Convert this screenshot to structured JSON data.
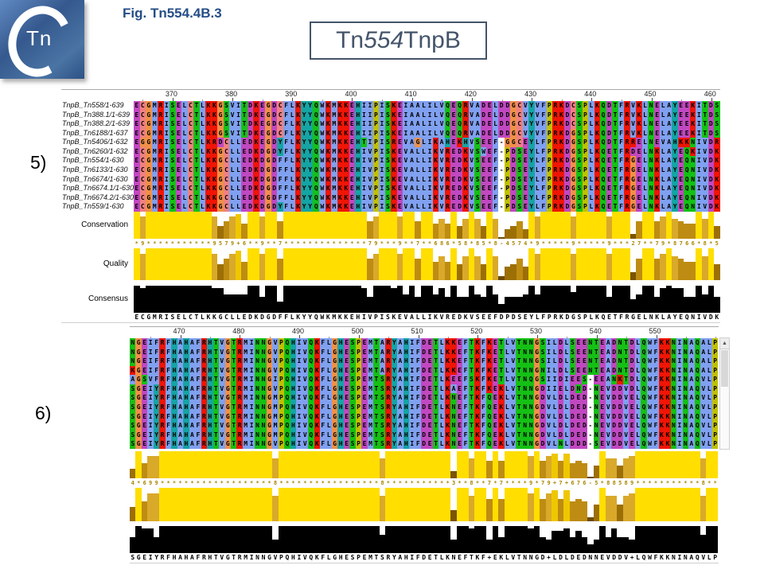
{
  "header": {
    "figure_caption": "Fig. Tn554.4B.3",
    "title": {
      "prefix": "Tn",
      "italic_number": "554",
      "suffix": " TnpB"
    },
    "logo": {
      "ring_letter": "C",
      "text": "Tn"
    }
  },
  "icons": {
    "scroll_up": "▲"
  },
  "color_scheme": {
    "name": "clustal",
    "map": {
      "A": "#80A0F0",
      "I": "#80A0F0",
      "L": "#80A0F0",
      "M": "#80A0F0",
      "F": "#80A0F0",
      "W": "#80A0F0",
      "V": "#80A0F0",
      "K": "#F01505",
      "R": "#F01505",
      "E": "#C048C0",
      "D": "#C048C0",
      "N": "#15C015",
      "Q": "#15C015",
      "S": "#15C015",
      "T": "#15C015",
      "C": "#F08080",
      "G": "#F09048",
      "P": "#C0C000",
      "H": "#15A4A4",
      "Y": "#15A4A4",
      "-": "#FFFFFF"
    }
  },
  "tracks": {
    "labels": {
      "conservation": "Conservation",
      "quality": "Quality",
      "consensus": "Consensus"
    },
    "conservation_palette": {
      "p11": "#FFDE00",
      "p10": "#EFC700",
      "p8": "#D9A92A",
      "p6": "#BE8C12",
      "p4": "#9C6F06",
      "p1": "#7A5403",
      "p0": "#6B4A02"
    },
    "digit_color": "#A98600",
    "consensus_bar_color": "#000000"
  },
  "panels": [
    {
      "label": "5)",
      "ruler_start": 364,
      "max_label": 460,
      "show_names": true,
      "show_track_labels": true,
      "names": [
        "TnpB_Tn558/1-639",
        "TnpB_Tn388.1/1-639",
        "TnpB_Tn388.2/1-639",
        "TnpB_Tn6188/1-637",
        "TnpB_Tn5406/1-632",
        "TnpB_Tn6260/1-632",
        "TnpB_Tn554/1-630",
        "TnpB_Tn6133/1-630",
        "TnpB_Tn6674/1-630",
        "TnpB_Tn6674.1/1-630",
        "TnpB_Tn6674.2/1-630",
        "TnpB_Tn559/1-630"
      ],
      "sequences": [
        "ECGMRISELCTLKKGSVITDKEGDCFLKYYQWKMKKEHIIPISKEIAALILVQEQRVADELDDGCVYVFPRKDCSPLKQDTFRVKLNELAYEEKITDS",
        "ECGMRISELCTLKKGSVITDKEGDCFLKYYQWKMKKEHIIPISKEIAALILVQEQRVADELDDGCVYVFPRKDCSPLKQDTFRVKLNELAYEEKITDS",
        "ECGMRISELCTLKKGSVITDKEGDCFLKYYQWKMKKEHIIPISKEIAALILVQEQRVADELDDGCVYVFPRKDCSPLKQDTFRVKLNELAYEEKITDS",
        "ECGMRISELCTLKKGSVITDKEGDCFLKYYQWKMKKEHIIPISKEIAALILVQEQRVADELDDGCVYVFPRKDGSPLKQDTFRVKLNELAYEEKITDS",
        "EGGMRISELCTLKRDCLLEDKEGDYFLKYYQWKMKKEHTIPISREVAGLIKAHEKHVSEEF-GGCEYLFPRKDGSPLKQDTFRRELNEVAHKKNIVDR",
        "ECGMRISELCTLKKGCLLEDKDGDYFLKYYQWKMKKEHIVPISKEVALLIKVREDKVSWEF-PDSEYLFPRKDGSPLKQETFRDELNKLAYEQKIVDK",
        "ECGMRISELCTLKKGCLLEDKDGDFFLKYYQWKMKKEHIVPISKEVALLIKVREDKVSEEF-PDSEYLFPRKDGSPLKQETFRGELNKLAYEQNIVDK",
        "ECGMRISELCTLKKGCLLEDKDGDFFLKYYQWKMKKEHIVPISKEVALLIKVREDKVSEEF-PDSEYLFPRKDGSPLKQETFRGELNKLAYEQNIVDK",
        "ECGMRISELCTLKKGCLLEDKDGDFFLKYYQWKMKKEHIVPISKEVALLIKVREDKVSEEF-PDSEYLFPRKDGSPLKQETFRGELNKLAYEQNIVDK",
        "ECGMRISELCTLKKGCLLEDKDGDFFLKYYQWKMKKEHIVPISKEVALLIKVREDKVSEEF-PDSEYLFPRKDGSPLKQETFRGELNKLAYEQNIVDK",
        "ECGMRISELCTLKKGCLLEDKDGDFFLKYYQWKMKKEHIVPISKEVALLIKVREDKVSEEF-PDSEYLFPRKDGSPLKQETFRGELNKLAYEQNIVDK",
        "ECGMRISELCTLKKGCLLEDKDGDYFLKYYQWKMKKEHIVPISKEVALLIKVREDKVSEEF-PDSEYLFPRKDGSPLKQETFRGELNKLAYEQNIVDK"
      ],
      "conservation": "*9***********9579+6**9**7**************79***9**7**686*58*85*8-4574*9*****9*****9***27**79*8766*8*5",
      "consensus_sequence": "ECGMRISELCTLKKGCLLEDKDGDFFLKYYQWKMKKEHIVPISKEVALLIKVREDKVSEEFDPDSEYLFPRKDGSPLKQETFRGELNKLAYEQNIVDK",
      "scrollbar": false
    },
    {
      "label": "6)",
      "ruler_start": 462,
      "max_label": 550,
      "show_names": false,
      "show_track_labels": false,
      "names": [],
      "sequences": [
        "NGEIFRFHAHAFRHTVGTRMINNGVPQHIVQKFLGHESPEMTARYAHIFDETLKKEFTKFKETLVTNNGSILDLSEENTEADNTDLQWFKKNINAQALP",
        "NGEIFRFHAHAFRHTVGTRMINNGVPQHIVQKFLGHESPEMTARYAHIFDETLKKEFTKFKETLVTNNGSILDLSEENTEADNTDLQWFKKNINAQALP",
        "NGEIFRFHAHAFRHTVGTRMINNGVPQHIVQKFLGHESPEMTARYAHIFDETLKKEFTKFKETLVTNNGSILDLSEENTEADNTDLQWFKKNINAQALP",
        "KGEIFRFHAHAFRHTVGTRMINNGVPQHIVQKFLGHESPEMTARYAHIFDETLKKEFTKFKETLVTNNGNILDLSEENTEADNTDLQWFKKNINAQALP",
        "AGSVFRFHAHAFRHTVGTRMINNGIPQHIVQKFLGHESPEMTSRYAHIFDETLKEEFSKFKETLVTNQGSIIDIEES-EEANKTDLQWFKKNINAQVLP",
        "SGEIYRFHAHAFRHTVGTRMINNGVPQHIVQKFLGHESPEMTSRYAHIFDETLKAEFTKFKEKLVTNNGDIIELDND-NEVDDVDLQWFKKNINAQVLP",
        "SGEIYRFHAHAFRHTVGTRMINNGMPQHIVQKFLGHESPEMTSRYAHIFDETLKNEFTKFQEKLVTNNGDVLDLDED-NEVDDVELQWFKKNINAQVLP",
        "SGEIYRFHAHAFRHTVGTRMINNGMPQHIVQKFLGHESPEMTSRYAHIFDETLKNEFTKFQEKLVTNNGDVLDLDED-NEVDDVELQWFKKNINAQVLP",
        "SGEIYRFHAHAFRHTVGTRMINNGMPQHIVQKFLGHESPEMTSRYAHIFDETLKNEFTKFQEKLVTNNGDVLDLDED-NEVDDVELQWFKKNINAQVLP",
        "SGEIYRFHAHAFRHTVGTRMINNGMPQHIVQKFLGHESPEMTSRYAHIFDETLKNEFTKFQEKLVTNNGDVLDLDED-NEVDDVELQWFKKNINAQVLP",
        "SGEIYRFHAHAFRHTVGTRMINNGMPQHIVQKFLGHESPEMTSRYAHIFDETLKNEFTKFQEKLVTNNGDVLDLDED-NEVDDVELQWFKKNINAQVLP",
        "SGEIYRFHAHAFRHTVGTRMINNGVPQHIVQKFLGHESPEMTSRYAHIFDETLKNEFTKFQEKLVTNNGDVLNLDDD-SEVDDVELQWFKKNINAQVLP"
      ],
      "conservation": "4*699*******************8*****************8***********3**8**7*7****9*79+7+676-5*88589***********8**",
      "consensus_sequence": "SGEIYRFHAHAFRHTVGTRMINNGVPQHIVQKFLGHESPEMTSRYAHIFDETLKNEFTKF+EKLVTNNGD+LDLDEDNNEVDDV+LQWFKKNINAQVLP",
      "scrollbar": true
    }
  ]
}
